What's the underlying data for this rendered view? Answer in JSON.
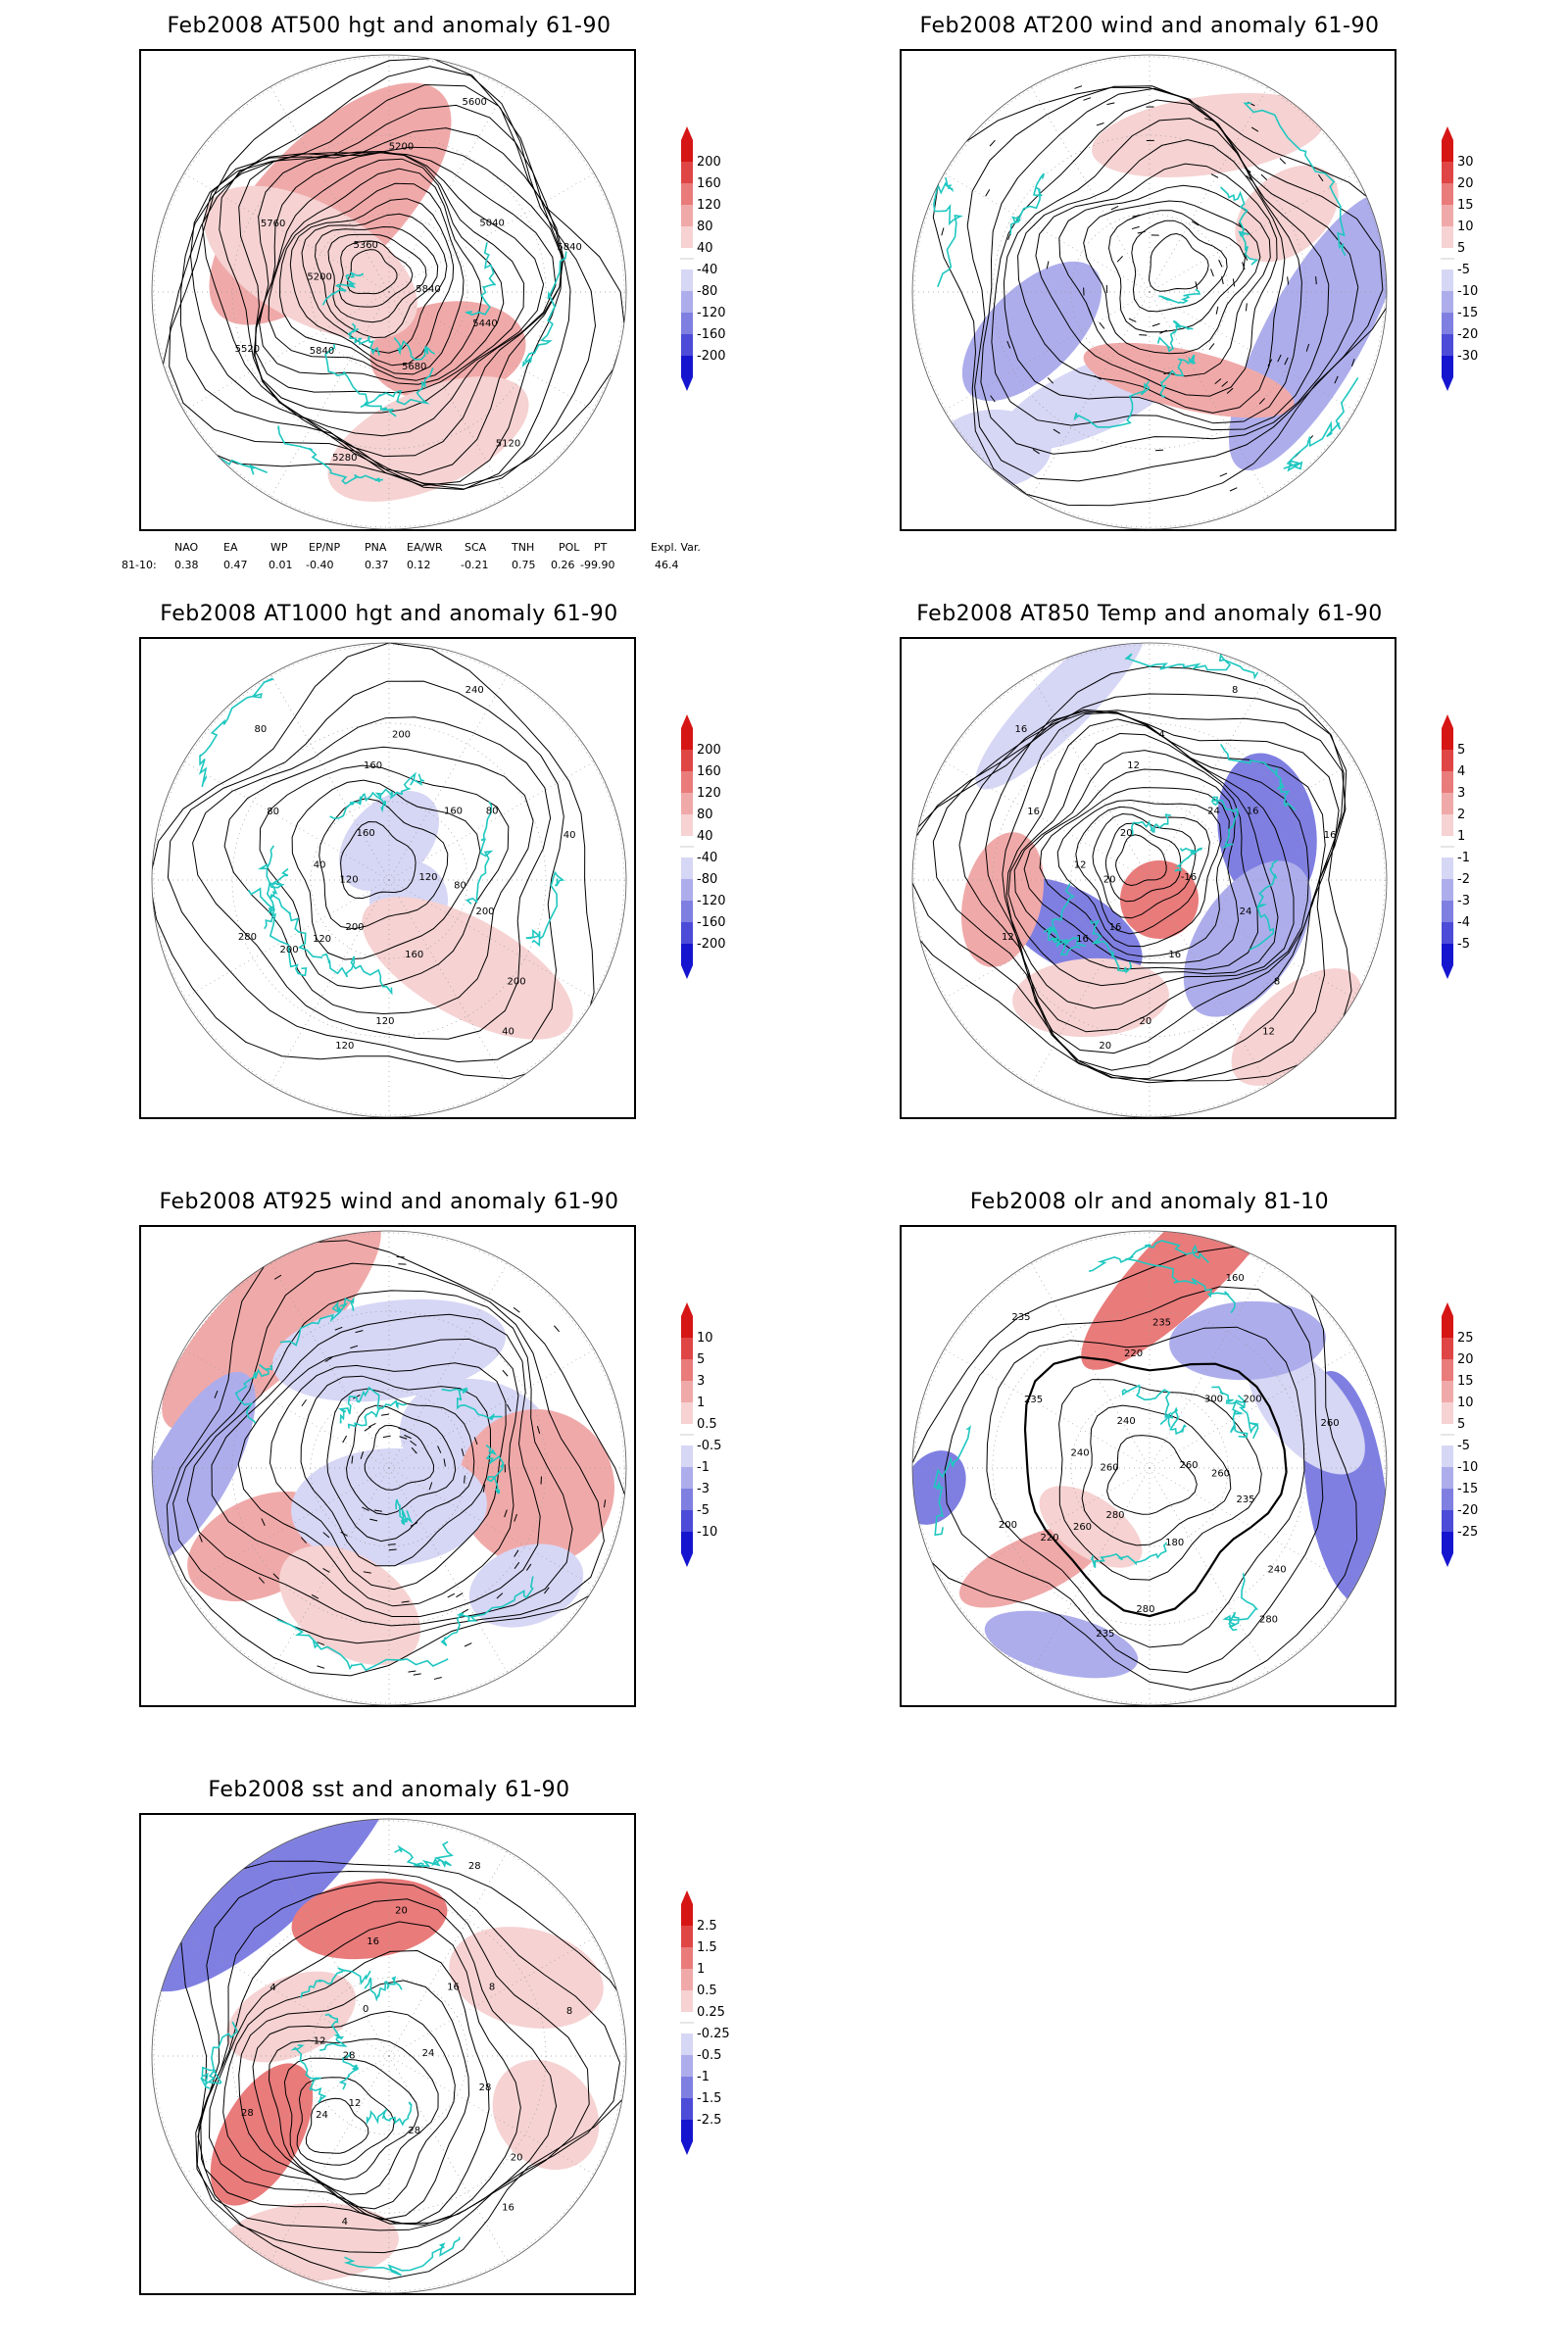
{
  "colors": {
    "coast": "#1fc7c0",
    "contour": "#000000",
    "pos": [
      "#ffffff",
      "#f6d2d2",
      "#f0a9a9",
      "#e97b7b",
      "#e04545",
      "#d61515"
    ],
    "neg": [
      "#ffffff",
      "#d6d6f5",
      "#adadec",
      "#7f7fe2",
      "#4c4cd8",
      "#1515d0"
    ]
  },
  "panels": [
    {
      "id": "at500",
      "title": "Feb2008 AT500 hgt and anomaly 61-90",
      "colorbar": [
        "200",
        "160",
        "120",
        "80",
        "40",
        "-40",
        "-80",
        "-120",
        "-160",
        "-200"
      ],
      "contour_labels": [
        "5840",
        "5840",
        "5200",
        "5120",
        "5200",
        "5040",
        "5280",
        "5360",
        "5440",
        "5520",
        "5600",
        "5680",
        "5760",
        "5840"
      ],
      "map_icon": "polar-stereographic-map"
    },
    {
      "id": "at200",
      "title": "Feb2008 AT200 wind and anomaly 61-90",
      "colorbar": [
        "30",
        "20",
        "15",
        "10",
        "5",
        "-5",
        "-10",
        "-15",
        "-20",
        "-30"
      ],
      "contour_labels": [],
      "map_icon": "polar-stereographic-map"
    },
    {
      "id": "at1000",
      "title": "Feb2008 AT1000 hgt and anomaly 61-90",
      "colorbar": [
        "200",
        "160",
        "120",
        "80",
        "40",
        "-40",
        "-80",
        "-120",
        "-160",
        "-200"
      ],
      "contour_labels": [
        "120",
        "120",
        "200",
        "40",
        "40",
        "80",
        "120",
        "160",
        "200",
        "280",
        "240",
        "160",
        "80",
        "40",
        "200",
        "160",
        "200",
        "120",
        "160",
        "120",
        "80",
        "80",
        "200"
      ],
      "map_icon": "polar-stereographic-map"
    },
    {
      "id": "at850",
      "title": "Feb2008 AT850 Temp and anomaly 61-90",
      "colorbar": [
        "5",
        "4",
        "3",
        "2",
        "1",
        "-1",
        "-2",
        "-3",
        "-4",
        "-5"
      ],
      "contour_labels": [
        "-16",
        "16",
        "4",
        "12",
        "12",
        "16",
        "20",
        "20",
        "24",
        "12",
        "8",
        "16",
        "16",
        "16",
        "16",
        "12",
        "8",
        "20",
        "24",
        "20",
        "16"
      ],
      "map_icon": "polar-stereographic-map"
    },
    {
      "id": "at925",
      "title": "Feb2008 AT925 wind and anomaly 61-90",
      "colorbar": [
        "10",
        "5",
        "3",
        "1",
        "0.5",
        "-0.5",
        "-1",
        "-3",
        "-5",
        "-10"
      ],
      "contour_labels": [],
      "map_icon": "polar-stereographic-map"
    },
    {
      "id": "olr",
      "title": "Feb2008 olr and anomaly 81-10",
      "colorbar": [
        "25",
        "20",
        "15",
        "10",
        "5",
        "-5",
        "-10",
        "-15",
        "-20",
        "-25"
      ],
      "contour_labels": [
        "260",
        "260",
        "235",
        "280",
        "240",
        "200",
        "235",
        "240",
        "235",
        "200",
        "160",
        "180",
        "235",
        "260",
        "280",
        "220",
        "240",
        "260",
        "300",
        "280",
        "235",
        "260",
        "220"
      ],
      "map_icon": "polar-stereographic-map"
    },
    {
      "id": "sst",
      "title": "Feb2008 sst and anomaly 61-90",
      "colorbar": [
        "2.5",
        "1.5",
        "1",
        "0.5",
        "0.25",
        "-0.25",
        "-0.5",
        "-1",
        "-1.5",
        "-2.5"
      ],
      "contour_labels": [
        "24",
        "24",
        "20",
        "16",
        "12",
        "8",
        "4",
        "0",
        "28",
        "28",
        "28",
        "28",
        "4",
        "8",
        "12",
        "16",
        "20",
        "28",
        "16"
      ],
      "map_icon": "polar-stereographic-map"
    }
  ],
  "indices": {
    "headers": [
      "NAO",
      "EA",
      "WP",
      "EP/NP",
      "PNA",
      "EA/WR",
      "SCA",
      "TNH",
      "POL",
      "PT",
      "Expl. Var."
    ],
    "row_label": "81-10:",
    "values": [
      "0.38",
      "0.47",
      "0.01",
      "-0.40",
      "0.37",
      "0.12",
      "-0.21",
      "0.75",
      "0.26",
      "-99.90",
      "46.4"
    ]
  }
}
